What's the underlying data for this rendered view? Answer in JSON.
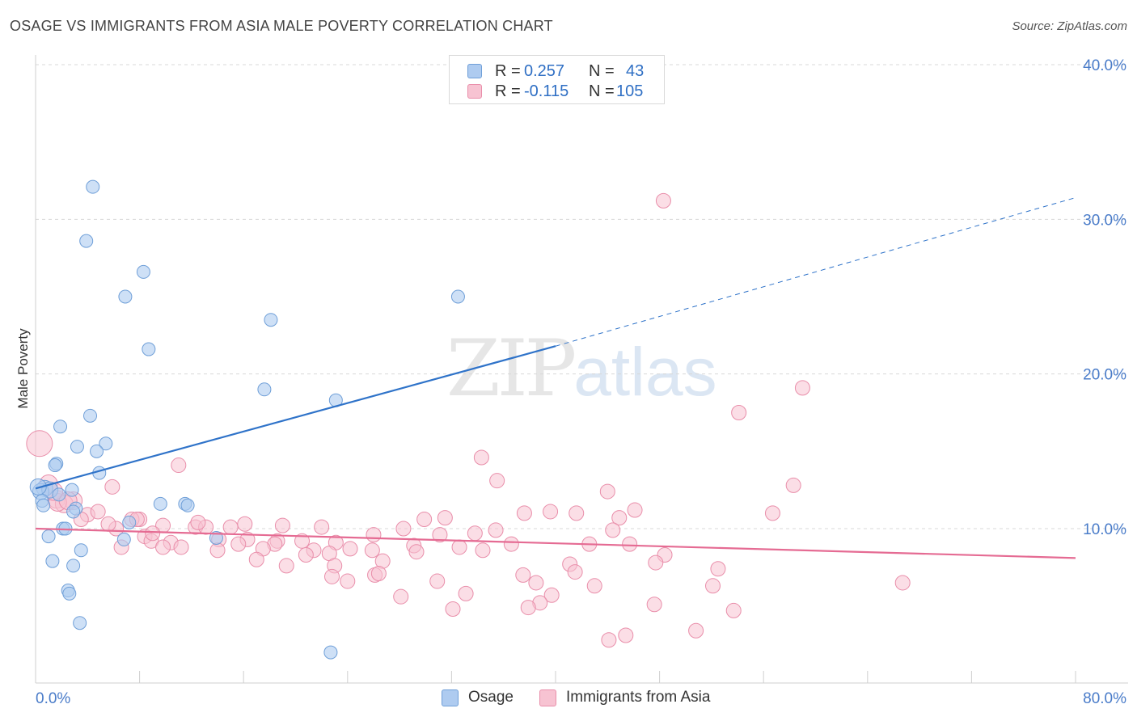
{
  "header": {
    "title": "OSAGE VS IMMIGRANTS FROM ASIA MALE POVERTY CORRELATION CHART",
    "source": "Source: ZipAtlas.com"
  },
  "watermark": {
    "zip": "ZIP",
    "atlas": "atlas"
  },
  "colors": {
    "osage_fill": "#aecbf0",
    "osage_stroke": "#6f9fd8",
    "osage_line": "#2f73c9",
    "asia_fill": "#f7c3d2",
    "asia_stroke": "#e98eaa",
    "asia_line": "#e56b93",
    "axis_label": "#4a7cc9",
    "grid": "#d8d8d8"
  },
  "legend_top": {
    "rows": [
      {
        "r_label": "R = ",
        "r_value": "0.257",
        "n_label": "N = ",
        "n_value": "43"
      },
      {
        "r_label": "R = ",
        "r_value": "-0.115",
        "n_label": "N = ",
        "n_value": "105"
      }
    ]
  },
  "legend_bottom": {
    "items": [
      "Osage",
      "Immigrants from Asia"
    ]
  },
  "chart_data": {
    "type": "scatter",
    "title": "OSAGE VS IMMIGRANTS FROM ASIA MALE POVERTY CORRELATION CHART",
    "xlabel": "",
    "ylabel": "Male Poverty",
    "xlim": [
      0,
      80
    ],
    "ylim": [
      0,
      42
    ],
    "x_tick_labels": [
      {
        "value": 0,
        "label": "0.0%"
      },
      {
        "value": 80,
        "label": "80.0%"
      }
    ],
    "y_tick_labels": [
      {
        "value": 10,
        "label": "10.0%"
      },
      {
        "value": 20,
        "label": "20.0%"
      },
      {
        "value": 30,
        "label": "30.0%"
      },
      {
        "value": 40,
        "label": "40.0%"
      }
    ],
    "x_minor_ticks": [
      0,
      8,
      16,
      24,
      32,
      40,
      48,
      56,
      64,
      72,
      80
    ],
    "grid": true,
    "legend_position": "top-center",
    "series": [
      {
        "name": "Osage",
        "r": 0.257,
        "n": 43,
        "trend": {
          "x0": 0,
          "y0": 12.6,
          "x1": 40,
          "y1": 21.8,
          "extend_to_x": 80,
          "extend_y": 31.4
        },
        "points": [
          [
            4.4,
            32.1
          ],
          [
            3.9,
            28.6
          ],
          [
            8.3,
            26.6
          ],
          [
            6.9,
            25.0
          ],
          [
            32.5,
            25.0
          ],
          [
            18.1,
            23.5
          ],
          [
            8.7,
            21.6
          ],
          [
            17.6,
            19.0
          ],
          [
            23.1,
            18.3
          ],
          [
            4.2,
            17.3
          ],
          [
            1.9,
            16.6
          ],
          [
            5.4,
            15.5
          ],
          [
            3.2,
            15.3
          ],
          [
            4.7,
            15.0
          ],
          [
            1.6,
            14.2
          ],
          [
            1.5,
            14.1
          ],
          [
            4.9,
            13.6
          ],
          [
            0.7,
            12.6
          ],
          [
            0.4,
            12.4
          ],
          [
            1.1,
            12.5
          ],
          [
            2.8,
            12.5
          ],
          [
            0.5,
            11.8
          ],
          [
            0.6,
            11.5
          ],
          [
            9.6,
            11.6
          ],
          [
            11.5,
            11.6
          ],
          [
            11.7,
            11.5
          ],
          [
            3.1,
            11.3
          ],
          [
            2.9,
            11.1
          ],
          [
            7.2,
            10.4
          ],
          [
            2.1,
            10.0
          ],
          [
            2.3,
            10.0
          ],
          [
            6.8,
            9.3
          ],
          [
            1.0,
            9.5
          ],
          [
            13.9,
            9.4
          ],
          [
            3.5,
            8.6
          ],
          [
            1.3,
            7.9
          ],
          [
            2.9,
            7.6
          ],
          [
            2.5,
            6.0
          ],
          [
            2.6,
            5.8
          ],
          [
            3.4,
            3.9
          ],
          [
            22.7,
            2.0
          ],
          [
            0.2,
            12.7
          ],
          [
            1.8,
            12.2
          ]
        ]
      },
      {
        "name": "Immigrants from Asia",
        "r": -0.115,
        "n": 105,
        "trend": {
          "x0": 0,
          "y0": 10.0,
          "x1": 80,
          "y1": 8.1
        },
        "points": [
          [
            48.3,
            31.2
          ],
          [
            59.0,
            19.1
          ],
          [
            54.1,
            17.5
          ],
          [
            0.3,
            15.5
          ],
          [
            34.3,
            14.6
          ],
          [
            11.0,
            14.1
          ],
          [
            35.5,
            13.1
          ],
          [
            1.0,
            12.9
          ],
          [
            58.3,
            12.8
          ],
          [
            5.9,
            12.7
          ],
          [
            44.0,
            12.4
          ],
          [
            2.9,
            11.8
          ],
          [
            1.6,
            11.9
          ],
          [
            2.2,
            11.6
          ],
          [
            1.7,
            11.7
          ],
          [
            46.1,
            11.2
          ],
          [
            39.6,
            11.1
          ],
          [
            37.6,
            11.0
          ],
          [
            41.6,
            11.0
          ],
          [
            56.7,
            11.0
          ],
          [
            44.9,
            10.7
          ],
          [
            31.5,
            10.7
          ],
          [
            29.9,
            10.6
          ],
          [
            8.0,
            10.6
          ],
          [
            9.8,
            10.2
          ],
          [
            7.4,
            10.6
          ],
          [
            4.0,
            10.9
          ],
          [
            6.2,
            10.0
          ],
          [
            12.3,
            10.1
          ],
          [
            13.1,
            10.1
          ],
          [
            15.0,
            10.1
          ],
          [
            22.0,
            10.1
          ],
          [
            28.3,
            10.0
          ],
          [
            35.4,
            9.9
          ],
          [
            44.4,
            9.9
          ],
          [
            33.8,
            9.7
          ],
          [
            31.1,
            9.6
          ],
          [
            26.0,
            9.6
          ],
          [
            8.4,
            9.5
          ],
          [
            14.1,
            9.3
          ],
          [
            16.3,
            9.3
          ],
          [
            18.6,
            9.2
          ],
          [
            20.5,
            9.2
          ],
          [
            23.1,
            9.1
          ],
          [
            10.4,
            9.1
          ],
          [
            8.9,
            9.2
          ],
          [
            42.6,
            9.0
          ],
          [
            45.7,
            9.0
          ],
          [
            36.6,
            9.0
          ],
          [
            32.6,
            8.8
          ],
          [
            29.1,
            8.9
          ],
          [
            24.2,
            8.7
          ],
          [
            21.4,
            8.6
          ],
          [
            18.4,
            9.0
          ],
          [
            15.6,
            9.0
          ],
          [
            14.0,
            8.6
          ],
          [
            9.8,
            8.8
          ],
          [
            6.6,
            8.8
          ],
          [
            11.2,
            8.8
          ],
          [
            17.5,
            8.7
          ],
          [
            25.9,
            8.6
          ],
          [
            29.3,
            8.5
          ],
          [
            34.4,
            8.6
          ],
          [
            48.4,
            8.3
          ],
          [
            22.6,
            8.4
          ],
          [
            20.8,
            8.3
          ],
          [
            17.0,
            8.0
          ],
          [
            26.7,
            7.9
          ],
          [
            19.3,
            7.6
          ],
          [
            23.0,
            7.6
          ],
          [
            41.1,
            7.7
          ],
          [
            41.5,
            7.2
          ],
          [
            47.7,
            7.8
          ],
          [
            52.5,
            7.4
          ],
          [
            37.5,
            7.0
          ],
          [
            26.1,
            7.0
          ],
          [
            26.4,
            7.1
          ],
          [
            22.8,
            6.9
          ],
          [
            24.0,
            6.6
          ],
          [
            30.9,
            6.6
          ],
          [
            38.5,
            6.5
          ],
          [
            43.0,
            6.3
          ],
          [
            52.1,
            6.3
          ],
          [
            66.7,
            6.5
          ],
          [
            33.1,
            5.8
          ],
          [
            39.7,
            5.7
          ],
          [
            28.1,
            5.6
          ],
          [
            38.8,
            5.2
          ],
          [
            47.6,
            5.1
          ],
          [
            32.1,
            4.8
          ],
          [
            37.9,
            4.9
          ],
          [
            53.7,
            4.7
          ],
          [
            50.8,
            3.4
          ],
          [
            45.4,
            3.1
          ],
          [
            44.1,
            2.8
          ],
          [
            3.5,
            10.6
          ],
          [
            5.6,
            10.3
          ],
          [
            4.8,
            11.1
          ],
          [
            2.5,
            11.8
          ],
          [
            1.4,
            12.4
          ],
          [
            12.5,
            10.4
          ],
          [
            7.8,
            10.6
          ],
          [
            9.0,
            9.7
          ],
          [
            19.0,
            10.2
          ],
          [
            16.1,
            10.3
          ]
        ]
      }
    ]
  }
}
